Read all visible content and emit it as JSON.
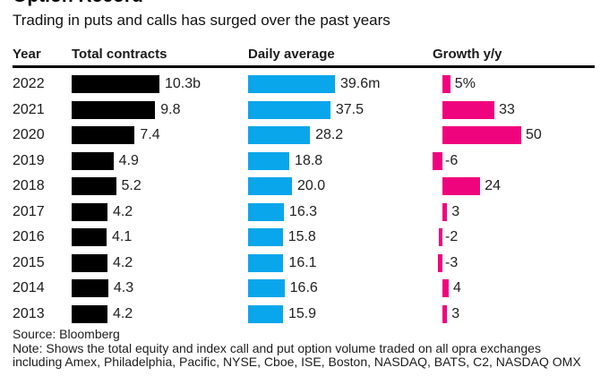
{
  "title": "Option Record",
  "subtitle": "Trading in puts and calls has surged over the past years",
  "columns": {
    "year": "Year",
    "contracts": "Total contracts",
    "daily": "Daily average",
    "growth": "Growth y/y"
  },
  "rows": [
    {
      "year": "2022",
      "contracts": 10.3,
      "contracts_label": "10.3b",
      "daily": 39.6,
      "daily_label": "39.6m",
      "growth": 5,
      "growth_label": "5%"
    },
    {
      "year": "2021",
      "contracts": 9.8,
      "contracts_label": "9.8",
      "daily": 37.5,
      "daily_label": "37.5",
      "growth": 33,
      "growth_label": "33"
    },
    {
      "year": "2020",
      "contracts": 7.4,
      "contracts_label": "7.4",
      "daily": 28.2,
      "daily_label": "28.2",
      "growth": 50,
      "growth_label": "50"
    },
    {
      "year": "2019",
      "contracts": 4.9,
      "contracts_label": "4.9",
      "daily": 18.8,
      "daily_label": "18.8",
      "growth": -6,
      "growth_label": "-6"
    },
    {
      "year": "2018",
      "contracts": 5.2,
      "contracts_label": "5.2",
      "daily": 20.0,
      "daily_label": "20.0",
      "growth": 24,
      "growth_label": "24"
    },
    {
      "year": "2017",
      "contracts": 4.2,
      "contracts_label": "4.2",
      "daily": 16.3,
      "daily_label": "16.3",
      "growth": 3,
      "growth_label": "3"
    },
    {
      "year": "2016",
      "contracts": 4.1,
      "contracts_label": "4.1",
      "daily": 15.8,
      "daily_label": "15.8",
      "growth": -2,
      "growth_label": "-2"
    },
    {
      "year": "2015",
      "contracts": 4.2,
      "contracts_label": "4.2",
      "daily": 16.1,
      "daily_label": "16.1",
      "growth": -3,
      "growth_label": "-3"
    },
    {
      "year": "2014",
      "contracts": 4.3,
      "contracts_label": "4.3",
      "daily": 16.6,
      "daily_label": "16.6",
      "growth": 4,
      "growth_label": "4"
    },
    {
      "year": "2013",
      "contracts": 4.2,
      "contracts_label": "4.2",
      "daily": 15.9,
      "daily_label": "15.9",
      "growth": 3,
      "growth_label": "3"
    }
  ],
  "footer": {
    "source": "Source: Bloomberg",
    "note_line1": "Note: Shows the total equity and index call and put option volume traded on all opra exchanges",
    "note_line2": "including Amex, Philadelphia, Pacific, NYSE, Cboe, ISE, Boston, NASDAQ, BATS, C2, NASDAQ OMX"
  },
  "colors": {
    "contracts_bar": "#000000",
    "daily_bar": "#0aa6eb",
    "growth_bar": "#f0047e",
    "text": "#161616"
  },
  "chart_data": {
    "type": "bar",
    "title": "Option Record",
    "subtitle": "Trading in puts and calls has surged over the past years",
    "categories": [
      "2022",
      "2021",
      "2020",
      "2019",
      "2018",
      "2017",
      "2016",
      "2015",
      "2014",
      "2013"
    ],
    "series": [
      {
        "name": "Total contracts",
        "unit": "billions",
        "color": "#000000",
        "values": [
          10.3,
          9.8,
          7.4,
          4.9,
          5.2,
          4.2,
          4.1,
          4.2,
          4.3,
          4.2
        ],
        "xlim": [
          0,
          10.3
        ]
      },
      {
        "name": "Daily average",
        "unit": "millions",
        "color": "#0aa6eb",
        "values": [
          39.6,
          37.5,
          28.2,
          18.8,
          20.0,
          16.3,
          15.8,
          16.1,
          16.6,
          15.9
        ],
        "xlim": [
          0,
          39.6
        ]
      },
      {
        "name": "Growth y/y",
        "unit": "%",
        "color": "#f0047e",
        "values": [
          5,
          33,
          50,
          -6,
          24,
          3,
          -2,
          -3,
          4,
          3
        ],
        "xlim": [
          -6,
          50
        ]
      }
    ],
    "orientation": "horizontal",
    "grid": false,
    "legend": false,
    "value_labels": true,
    "source": "Bloomberg",
    "note": "Shows the total equity and index call and put option volume traded on all opra exchanges including Amex, Philadelphia, Pacific, NYSE, Cboe, ISE, Boston, NASDAQ, BATS, C2, NASDAQ OMX"
  }
}
